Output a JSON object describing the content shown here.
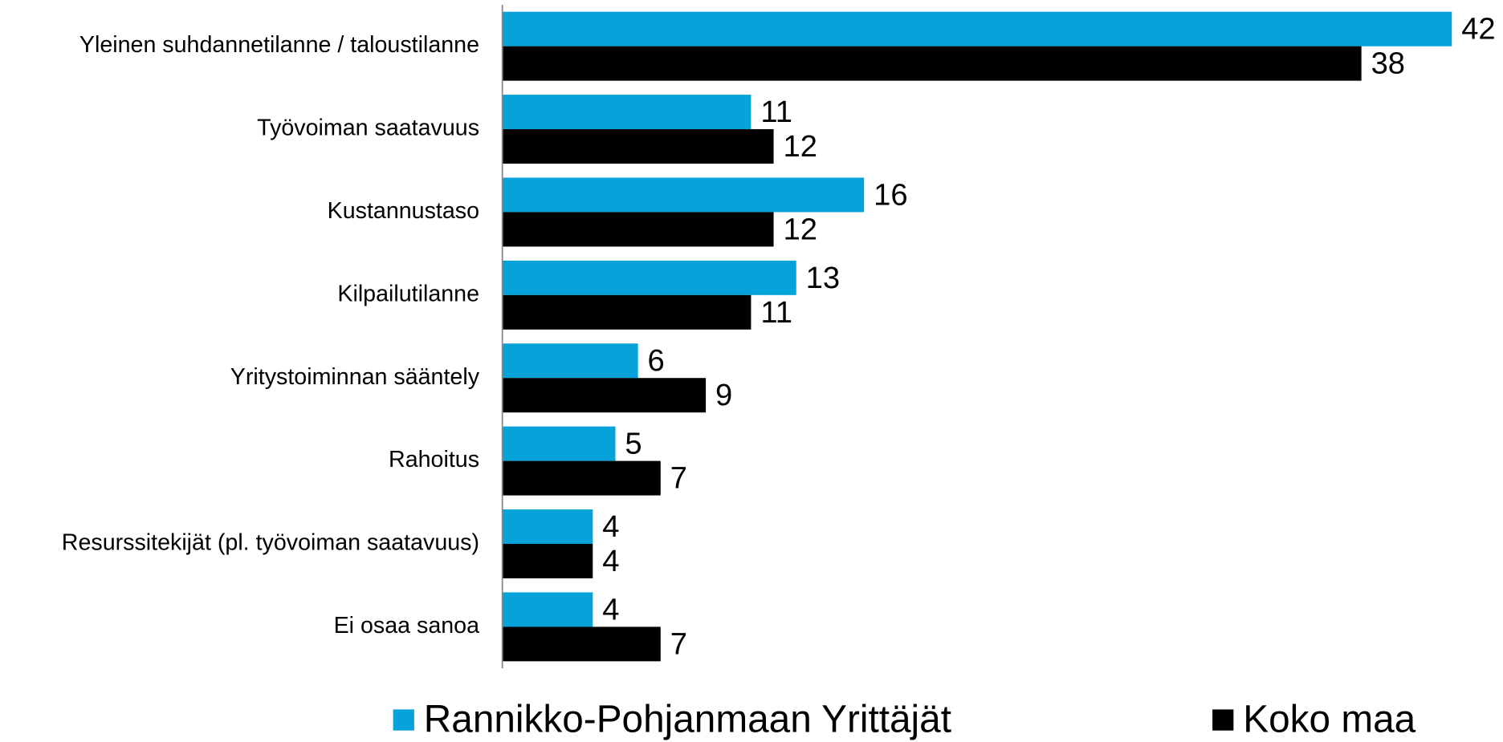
{
  "chart_data": {
    "type": "bar",
    "orientation": "horizontal",
    "categories": [
      "Yleinen suhdannetilanne / taloustilanne",
      "Työvoiman saatavuus",
      "Kustannustaso",
      "Kilpailutilanne",
      "Yritystoiminnan sääntely",
      "Rahoitus",
      "Resurssitekijät (pl. työvoiman saatavuus)",
      "Ei osaa sanoa"
    ],
    "series": [
      {
        "name": "Rannikko-Pohjanmaan Yrittäjät",
        "color": "#05a3da",
        "values": [
          42,
          11,
          16,
          13,
          6,
          5,
          4,
          4
        ]
      },
      {
        "name": "Koko maa",
        "color": "#000000",
        "values": [
          38,
          12,
          12,
          11,
          9,
          7,
          4,
          7
        ]
      }
    ],
    "xlim": [
      0,
      44
    ],
    "grid": false,
    "legend": "bottom"
  }
}
